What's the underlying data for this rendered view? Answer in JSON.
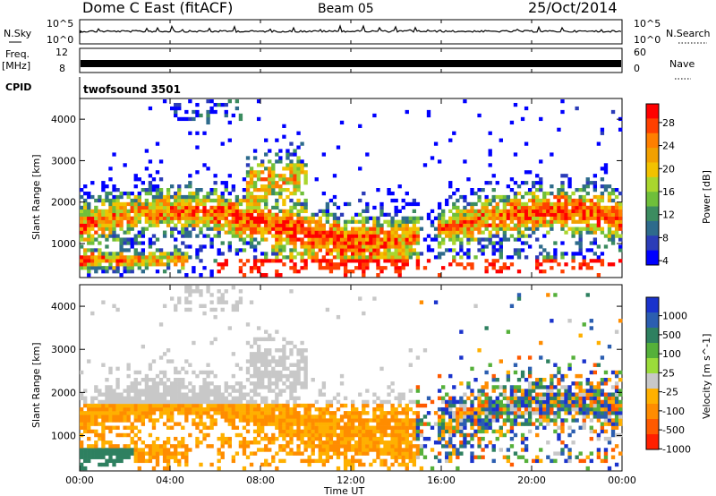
{
  "header": {
    "title": "Dome C East (fitACF)",
    "beam": "Beam 05",
    "date": "25/Oct/2014"
  },
  "panels": {
    "noise": {
      "left_label": "N.Sky",
      "right_label": "N.Search",
      "left_ticks": [
        "10^5",
        "10^0"
      ],
      "right_ticks": [
        "10^5",
        "10^0"
      ]
    },
    "freq": {
      "left_label_1": "Freq.",
      "left_label_2": "[MHz]",
      "right_label": "Nave",
      "left_ticks": [
        "12",
        "8"
      ],
      "right_ticks": [
        "60",
        "0"
      ]
    },
    "cpid": {
      "label": "CPID",
      "value": "twofsound 3501"
    }
  },
  "power_panel": {
    "ylabel": "Slant Range [km]",
    "yticks": [
      "4000",
      "3000",
      "2000",
      "1000"
    ],
    "colorbar_label": "Power [dB]",
    "colorbar_ticks": [
      "28",
      "24",
      "20",
      "16",
      "12",
      "8",
      "4"
    ],
    "colors": [
      "#0000ff",
      "#2b3cb8",
      "#2e6b8c",
      "#3c8c60",
      "#6fbf3a",
      "#a9d62e",
      "#f2c200",
      "#f2a000",
      "#ff7f00",
      "#ff4000",
      "#ff0000"
    ]
  },
  "velocity_panel": {
    "ylabel": "Slant Range [km]",
    "yticks": [
      "4000",
      "3000",
      "2000",
      "1000"
    ],
    "colorbar_label": "Velocity [m s^-1]",
    "colorbar_ticks": [
      "1000",
      "500",
      "100",
      "25",
      "-25",
      "-100",
      "-500",
      "-1000"
    ],
    "colors": [
      "#1a33cc",
      "#2b5eb0",
      "#2e8060",
      "#55b03a",
      "#9bdc3a",
      "#c8c8c8",
      "#ffb000",
      "#ff8c00",
      "#ff5a00",
      "#ff2000"
    ]
  },
  "xaxis": {
    "label": "Time UT",
    "ticks": [
      "00:00",
      "04:00",
      "08:00",
      "12:00",
      "16:00",
      "20:00",
      "00:00"
    ]
  }
}
